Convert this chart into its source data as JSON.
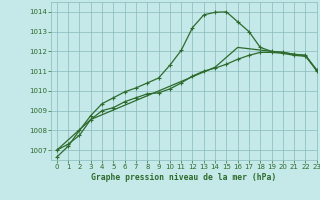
{
  "title": "Graphe pression niveau de la mer (hPa)",
  "bg_color": "#c5e8e8",
  "grid_color": "#88bbbb",
  "line_color": "#2d6b2d",
  "xmin": -0.5,
  "xmax": 23,
  "ymin": 1006.5,
  "ymax": 1014.5,
  "yticks": [
    1007,
    1008,
    1009,
    1010,
    1011,
    1012,
    1013,
    1014
  ],
  "xticks": [
    0,
    1,
    2,
    3,
    4,
    5,
    6,
    7,
    8,
    9,
    10,
    11,
    12,
    13,
    14,
    15,
    16,
    17,
    18,
    19,
    20,
    21,
    22,
    23
  ],
  "series1_x": [
    0,
    1,
    2,
    3,
    4,
    5,
    6,
    7,
    8,
    9,
    10,
    11,
    12,
    13,
    14,
    15,
    16,
    17,
    18,
    19,
    20,
    21,
    22,
    23
  ],
  "series1_y": [
    1006.65,
    1007.2,
    1008.0,
    1008.75,
    1009.35,
    1009.65,
    1009.95,
    1010.15,
    1010.4,
    1010.65,
    1011.3,
    1012.05,
    1013.2,
    1013.85,
    1013.98,
    1014.0,
    1013.5,
    1013.0,
    1012.2,
    1012.0,
    1011.95,
    1011.85,
    1011.8,
    1011.0
  ],
  "series2_x": [
    0,
    1,
    2,
    3,
    4,
    5,
    6,
    7,
    8,
    9,
    10,
    11,
    12,
    13,
    14,
    15,
    16,
    17,
    18,
    19,
    20,
    21,
    22,
    23
  ],
  "series2_y": [
    1007.0,
    1007.3,
    1007.75,
    1008.55,
    1009.0,
    1009.15,
    1009.45,
    1009.65,
    1009.85,
    1009.9,
    1010.1,
    1010.4,
    1010.75,
    1011.0,
    1011.15,
    1011.35,
    1011.6,
    1011.8,
    1011.95,
    1011.95,
    1011.9,
    1011.8,
    1011.75,
    1011.05
  ],
  "series3_x": [
    0,
    3,
    14,
    16,
    19,
    20,
    21,
    22,
    23
  ],
  "series3_y": [
    1007.0,
    1008.55,
    1011.2,
    1012.2,
    1012.0,
    1011.95,
    1011.85,
    1011.8,
    1011.05
  ]
}
